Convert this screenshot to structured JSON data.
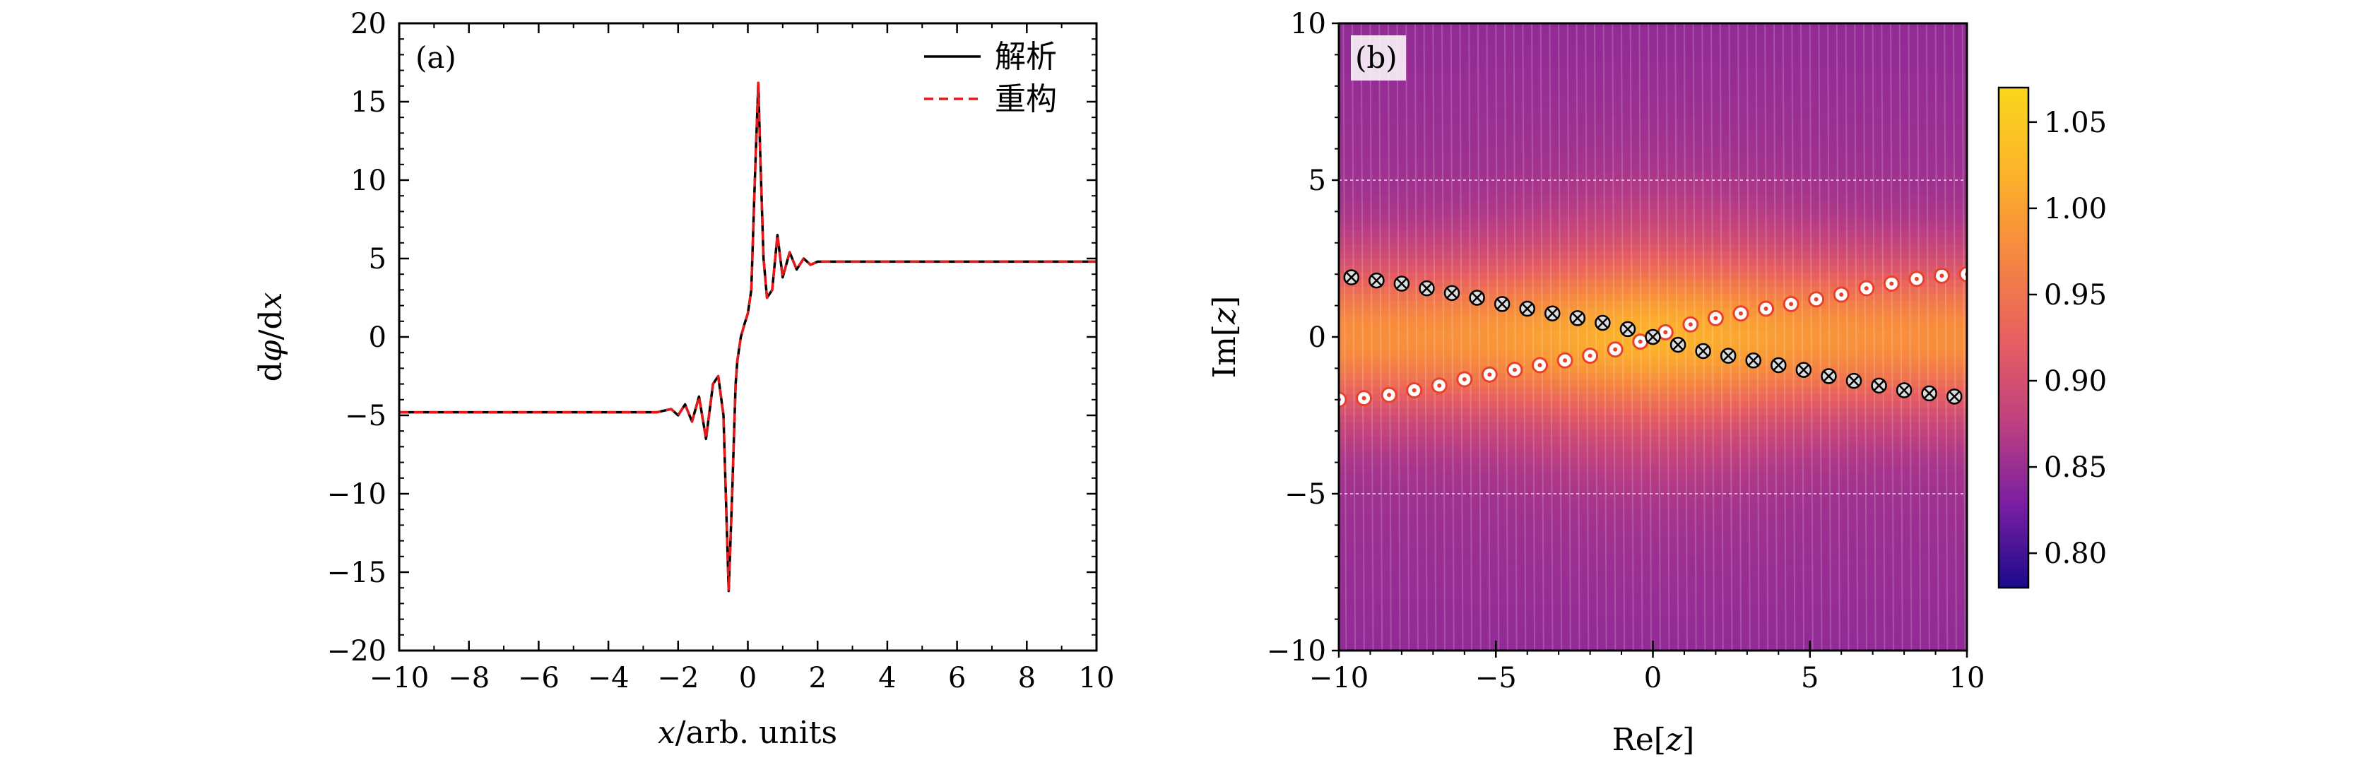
{
  "chart_data": [
    {
      "type": "line",
      "panel_label": "(a)",
      "xlabel": "x/arb. units",
      "ylabel": "dφ/dx",
      "xlim": [
        -10,
        10
      ],
      "ylim": [
        -20,
        20
      ],
      "xticks": [
        -10,
        -8,
        -6,
        -4,
        -2,
        0,
        2,
        4,
        6,
        8,
        10
      ],
      "yticks": [
        -20,
        -15,
        -10,
        -5,
        0,
        5,
        10,
        15,
        20
      ],
      "xtick_labels": [
        "−10",
        "−8",
        "−6",
        "−4",
        "−2",
        "0",
        "2",
        "4",
        "6",
        "8",
        "10"
      ],
      "ytick_labels": [
        "−20",
        "−15",
        "−10",
        "−5",
        "0",
        "5",
        "10",
        "15",
        "20"
      ],
      "legend_position": "top-right",
      "series": [
        {
          "name": "解析",
          "color": "#000000",
          "style": "solid",
          "x": [
            -10,
            -3,
            -2.6,
            -2.2,
            -2.0,
            -1.8,
            -1.6,
            -1.4,
            -1.2,
            -1.0,
            -0.85,
            -0.7,
            -0.55,
            -0.45,
            -0.35,
            -0.3,
            -0.2,
            -0.1,
            0,
            0.1,
            0.2,
            0.3,
            0.35,
            0.45,
            0.55,
            0.7,
            0.85,
            1.0,
            1.2,
            1.4,
            1.6,
            1.8,
            2.0,
            2.2,
            2.6,
            3,
            10
          ],
          "y": [
            -4.8,
            -4.8,
            -4.8,
            -4.6,
            -5.0,
            -4.3,
            -5.4,
            -3.8,
            -6.5,
            -3.0,
            -2.5,
            -5.0,
            -16.2,
            -10.0,
            -3.0,
            -1.5,
            0.0,
            0.8,
            1.5,
            3.0,
            10.0,
            16.2,
            12.0,
            5.0,
            2.5,
            3.0,
            6.5,
            3.8,
            5.4,
            4.3,
            5.0,
            4.6,
            4.8,
            4.8,
            4.8,
            4.8,
            4.8
          ]
        },
        {
          "name": "重构",
          "color": "#e41a1c",
          "style": "dashed",
          "x": [
            -10,
            -3,
            -2.6,
            -2.2,
            -2.0,
            -1.8,
            -1.6,
            -1.4,
            -1.2,
            -1.0,
            -0.85,
            -0.7,
            -0.55,
            -0.45,
            -0.35,
            -0.3,
            -0.2,
            -0.1,
            0,
            0.1,
            0.2,
            0.3,
            0.35,
            0.45,
            0.55,
            0.7,
            0.85,
            1.0,
            1.2,
            1.4,
            1.6,
            1.8,
            2.0,
            2.2,
            2.6,
            3,
            10
          ],
          "y": [
            -4.8,
            -4.8,
            -4.8,
            -4.6,
            -5.0,
            -4.3,
            -5.4,
            -3.8,
            -6.5,
            -3.0,
            -2.5,
            -5.0,
            -16.2,
            -10.0,
            -3.0,
            -1.5,
            0.0,
            0.8,
            1.5,
            3.0,
            10.0,
            16.2,
            12.0,
            5.0,
            2.5,
            3.0,
            6.5,
            3.8,
            5.4,
            4.3,
            5.0,
            4.6,
            4.8,
            4.8,
            4.8,
            4.8,
            4.8
          ]
        }
      ]
    },
    {
      "type": "heatmap",
      "panel_label": "(b)",
      "xlabel": "Re[z]",
      "ylabel": "Im[z]",
      "xlim": [
        -10,
        10
      ],
      "ylim": [
        -10,
        10
      ],
      "xticks": [
        -10,
        -5,
        0,
        5,
        10
      ],
      "yticks": [
        -10,
        -5,
        0,
        5,
        10
      ],
      "xtick_labels": [
        "−10",
        "−5",
        "0",
        "5",
        "10"
      ],
      "ytick_labels": [
        "−10",
        "−5",
        "0",
        "5",
        "10"
      ],
      "colorbar": {
        "range": [
          0.78,
          1.07
        ],
        "ticks": [
          0.8,
          0.85,
          0.9,
          0.95,
          1.0,
          1.05
        ],
        "tick_labels": [
          "0.80",
          "0.85",
          "0.90",
          "0.95",
          "1.00",
          "1.05"
        ],
        "colors": [
          "#1a0a8c",
          "#7a1fa2",
          "#c0417f",
          "#e8605f",
          "#f6883f",
          "#fdb42a",
          "#f9d71c"
        ]
      },
      "markers": [
        {
          "type": "zero",
          "color": "#e8402a",
          "points": [
            [
              -10,
              -2.0
            ],
            [
              -9.2,
              -1.95
            ],
            [
              -8.4,
              -1.85
            ],
            [
              -7.6,
              -1.7
            ],
            [
              -6.8,
              -1.55
            ],
            [
              -6.0,
              -1.35
            ],
            [
              -5.2,
              -1.2
            ],
            [
              -4.4,
              -1.05
            ],
            [
              -3.6,
              -0.9
            ],
            [
              -2.8,
              -0.75
            ],
            [
              -2.0,
              -0.6
            ],
            [
              -1.2,
              -0.4
            ],
            [
              -0.4,
              -0.15
            ],
            [
              0.4,
              0.15
            ],
            [
              1.2,
              0.4
            ],
            [
              2.0,
              0.6
            ],
            [
              2.8,
              0.75
            ],
            [
              3.6,
              0.9
            ],
            [
              4.4,
              1.05
            ],
            [
              5.2,
              1.2
            ],
            [
              6.0,
              1.35
            ],
            [
              6.8,
              1.55
            ],
            [
              7.6,
              1.7
            ],
            [
              8.4,
              1.85
            ],
            [
              9.2,
              1.95
            ],
            [
              10,
              2.0
            ]
          ]
        },
        {
          "type": "pole",
          "color": "#000000",
          "points": [
            [
              -9.6,
              1.9
            ],
            [
              -8.8,
              1.8
            ],
            [
              -8.0,
              1.7
            ],
            [
              -7.2,
              1.55
            ],
            [
              -6.4,
              1.4
            ],
            [
              -5.6,
              1.25
            ],
            [
              -4.8,
              1.05
            ],
            [
              -4.0,
              0.9
            ],
            [
              -3.2,
              0.75
            ],
            [
              -2.4,
              0.6
            ],
            [
              -1.6,
              0.45
            ],
            [
              -0.8,
              0.25
            ],
            [
              0,
              0
            ],
            [
              0.8,
              -0.25
            ],
            [
              1.6,
              -0.45
            ],
            [
              2.4,
              -0.6
            ],
            [
              3.2,
              -0.75
            ],
            [
              4.0,
              -0.9
            ],
            [
              4.8,
              -1.05
            ],
            [
              5.6,
              -1.25
            ],
            [
              6.4,
              -1.4
            ],
            [
              7.2,
              -1.55
            ],
            [
              8.0,
              -1.7
            ],
            [
              8.8,
              -1.8
            ],
            [
              9.6,
              -1.9
            ]
          ]
        }
      ]
    }
  ]
}
